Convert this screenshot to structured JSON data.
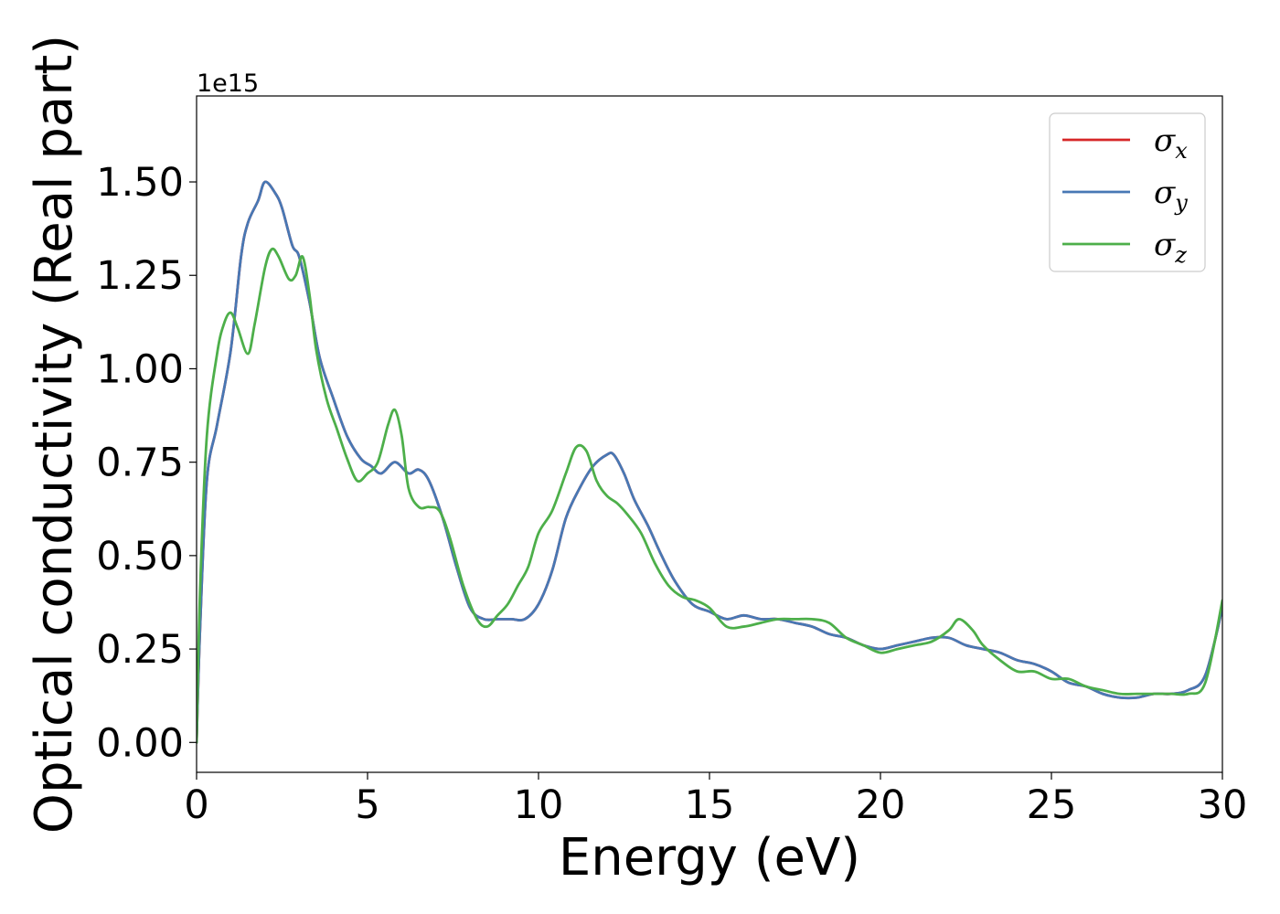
{
  "chart_data": {
    "type": "line",
    "xlabel": "Energy (eV)",
    "ylabel": "Optical conductivity (Real part)",
    "y_offset_text": "1e15",
    "xlim": [
      0,
      30
    ],
    "ylim": [
      -0.08,
      1.73
    ],
    "x_ticks": [
      0,
      5,
      10,
      15,
      20,
      25,
      30
    ],
    "x_tick_labels": [
      "0",
      "5",
      "10",
      "15",
      "20",
      "25",
      "30"
    ],
    "y_ticks": [
      0,
      0.25,
      0.5,
      0.75,
      1.0,
      1.25,
      1.5
    ],
    "y_tick_labels": [
      "0.00",
      "0.25",
      "0.50",
      "0.75",
      "1.00",
      "1.25",
      "1.50"
    ],
    "grid": false,
    "legend_position": "top-right",
    "series": [
      {
        "name": "σx",
        "symbol": "σ",
        "subscript": "x",
        "color": "#d62728",
        "x": [
          0,
          0.1,
          0.3,
          0.6,
          1.0,
          1.3,
          1.5,
          1.8,
          2.0,
          2.3,
          2.5,
          2.8,
          3.0,
          3.3,
          3.6,
          4.0,
          4.4,
          4.8,
          5.1,
          5.4,
          5.8,
          6.2,
          6.5,
          6.8,
          7.2,
          7.6,
          8.0,
          8.4,
          8.8,
          9.2,
          9.6,
          10.0,
          10.4,
          10.8,
          11.2,
          11.6,
          12.0,
          12.2,
          12.5,
          12.8,
          13.2,
          13.6,
          14.0,
          14.5,
          15.0,
          15.5,
          16.0,
          16.5,
          17.0,
          17.5,
          18.0,
          18.5,
          19.0,
          19.5,
          20.0,
          20.5,
          21.0,
          21.5,
          22.0,
          22.5,
          23.0,
          23.5,
          24.0,
          24.5,
          25.0,
          25.5,
          26.0,
          26.5,
          27.0,
          27.5,
          28.0,
          28.5,
          29.0,
          29.5,
          30.0
        ],
        "y": [
          0.0,
          0.3,
          0.7,
          0.85,
          1.05,
          1.3,
          1.39,
          1.45,
          1.5,
          1.47,
          1.43,
          1.33,
          1.3,
          1.18,
          1.03,
          0.92,
          0.82,
          0.76,
          0.74,
          0.72,
          0.75,
          0.72,
          0.73,
          0.7,
          0.6,
          0.47,
          0.36,
          0.33,
          0.33,
          0.33,
          0.33,
          0.37,
          0.46,
          0.6,
          0.68,
          0.74,
          0.77,
          0.77,
          0.72,
          0.65,
          0.58,
          0.5,
          0.43,
          0.37,
          0.35,
          0.33,
          0.34,
          0.33,
          0.33,
          0.32,
          0.31,
          0.29,
          0.28,
          0.26,
          0.25,
          0.26,
          0.27,
          0.28,
          0.28,
          0.26,
          0.25,
          0.24,
          0.22,
          0.21,
          0.19,
          0.16,
          0.15,
          0.13,
          0.12,
          0.12,
          0.13,
          0.13,
          0.14,
          0.18,
          0.36
        ]
      },
      {
        "name": "σy",
        "symbol": "σ",
        "subscript": "y",
        "color": "#4878b4",
        "x": [
          0,
          0.1,
          0.3,
          0.6,
          1.0,
          1.3,
          1.5,
          1.8,
          2.0,
          2.3,
          2.5,
          2.8,
          3.0,
          3.3,
          3.6,
          4.0,
          4.4,
          4.8,
          5.1,
          5.4,
          5.8,
          6.2,
          6.5,
          6.8,
          7.2,
          7.6,
          8.0,
          8.4,
          8.8,
          9.2,
          9.6,
          10.0,
          10.4,
          10.8,
          11.2,
          11.6,
          12.0,
          12.2,
          12.5,
          12.8,
          13.2,
          13.6,
          14.0,
          14.5,
          15.0,
          15.5,
          16.0,
          16.5,
          17.0,
          17.5,
          18.0,
          18.5,
          19.0,
          19.5,
          20.0,
          20.5,
          21.0,
          21.5,
          22.0,
          22.5,
          23.0,
          23.5,
          24.0,
          24.5,
          25.0,
          25.5,
          26.0,
          26.5,
          27.0,
          27.5,
          28.0,
          28.5,
          29.0,
          29.5,
          30.0
        ],
        "y": [
          0.0,
          0.3,
          0.7,
          0.85,
          1.05,
          1.3,
          1.39,
          1.45,
          1.5,
          1.47,
          1.43,
          1.33,
          1.3,
          1.18,
          1.03,
          0.92,
          0.82,
          0.76,
          0.74,
          0.72,
          0.75,
          0.72,
          0.73,
          0.7,
          0.6,
          0.47,
          0.36,
          0.33,
          0.33,
          0.33,
          0.33,
          0.37,
          0.46,
          0.6,
          0.68,
          0.74,
          0.77,
          0.77,
          0.72,
          0.65,
          0.58,
          0.5,
          0.43,
          0.37,
          0.35,
          0.33,
          0.34,
          0.33,
          0.33,
          0.32,
          0.31,
          0.29,
          0.28,
          0.26,
          0.25,
          0.26,
          0.27,
          0.28,
          0.28,
          0.26,
          0.25,
          0.24,
          0.22,
          0.21,
          0.19,
          0.16,
          0.15,
          0.13,
          0.12,
          0.12,
          0.13,
          0.13,
          0.14,
          0.18,
          0.36
        ]
      },
      {
        "name": "σz",
        "symbol": "σ",
        "subscript": "z",
        "color": "#4daf4a",
        "x": [
          0,
          0.1,
          0.3,
          0.6,
          0.8,
          1.0,
          1.2,
          1.5,
          1.7,
          2.0,
          2.2,
          2.4,
          2.7,
          2.9,
          3.1,
          3.3,
          3.5,
          3.8,
          4.1,
          4.4,
          4.7,
          5.0,
          5.3,
          5.6,
          5.8,
          6.0,
          6.2,
          6.5,
          6.8,
          7.1,
          7.4,
          7.8,
          8.2,
          8.5,
          8.8,
          9.1,
          9.4,
          9.7,
          10.0,
          10.4,
          10.8,
          11.1,
          11.4,
          11.7,
          12.0,
          12.3,
          12.6,
          13.0,
          13.4,
          13.8,
          14.2,
          14.6,
          15.0,
          15.5,
          16.0,
          16.5,
          17.0,
          17.5,
          18.0,
          18.5,
          19.0,
          19.5,
          20.0,
          20.5,
          21.0,
          21.5,
          22.0,
          22.3,
          22.7,
          23.0,
          23.5,
          24.0,
          24.5,
          25.0,
          25.5,
          26.0,
          26.5,
          27.0,
          27.5,
          28.0,
          28.5,
          29.0,
          29.5,
          30.0
        ],
        "y": [
          0.0,
          0.4,
          0.82,
          1.04,
          1.12,
          1.15,
          1.11,
          1.04,
          1.12,
          1.27,
          1.32,
          1.3,
          1.24,
          1.25,
          1.3,
          1.2,
          1.05,
          0.92,
          0.84,
          0.76,
          0.7,
          0.72,
          0.75,
          0.85,
          0.89,
          0.82,
          0.68,
          0.63,
          0.63,
          0.62,
          0.55,
          0.42,
          0.33,
          0.31,
          0.34,
          0.37,
          0.42,
          0.47,
          0.56,
          0.62,
          0.72,
          0.79,
          0.78,
          0.7,
          0.66,
          0.64,
          0.61,
          0.56,
          0.48,
          0.42,
          0.39,
          0.38,
          0.36,
          0.31,
          0.31,
          0.32,
          0.33,
          0.33,
          0.33,
          0.32,
          0.28,
          0.26,
          0.24,
          0.25,
          0.26,
          0.27,
          0.3,
          0.33,
          0.3,
          0.26,
          0.22,
          0.19,
          0.19,
          0.17,
          0.17,
          0.15,
          0.14,
          0.13,
          0.13,
          0.13,
          0.13,
          0.13,
          0.16,
          0.38
        ]
      }
    ]
  }
}
